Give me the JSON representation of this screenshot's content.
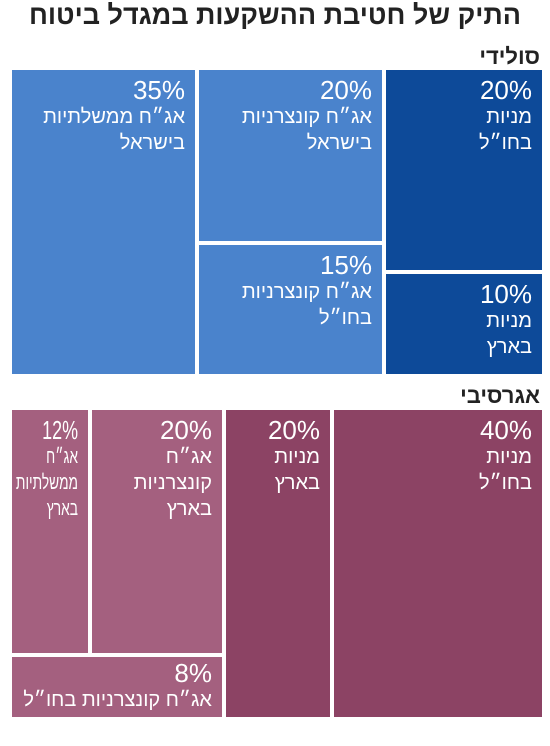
{
  "title": "התיק של חטיבת ההשקעות במגדל ביטוח",
  "sections": {
    "solid": {
      "label": "סולידי"
    },
    "aggressive": {
      "label": "אגרסיבי"
    }
  },
  "colors": {
    "solid_light": "#4a83cc",
    "solid_dark": "#0d4a99",
    "aggressive_light": "#a4607f",
    "aggressive_dark": "#8c4364"
  },
  "chart_data": [
    {
      "type": "treemap",
      "title": "סולידי",
      "items": [
        {
          "label": "אג״ח ממשלתיות\nבישראל",
          "value": 35,
          "display": "35%",
          "color": "#4a83cc"
        },
        {
          "label": "אג״ח קונצרניות\nבישראל",
          "value": 20,
          "display": "20%",
          "color": "#4a83cc"
        },
        {
          "label": "מניות\nבחו״ל",
          "value": 20,
          "display": "20%",
          "color": "#0d4a99"
        },
        {
          "label": "אג״ח קונצרניות\nבחו״ל",
          "value": 15,
          "display": "15%",
          "color": "#4a83cc"
        },
        {
          "label": "מניות\nבארץ",
          "value": 10,
          "display": "10%",
          "color": "#0d4a99"
        }
      ]
    },
    {
      "type": "treemap",
      "title": "אגרסיבי",
      "items": [
        {
          "label": "אג״ח\nממשלתיות\nבארץ",
          "value": 12,
          "display": "12%",
          "color": "#a4607f"
        },
        {
          "label": "אג״ח\nקונצרניות\nבארץ",
          "value": 20,
          "display": "20%",
          "color": "#a4607f"
        },
        {
          "label": "מניות\nבארץ",
          "value": 20,
          "display": "20%",
          "color": "#8c4364"
        },
        {
          "label": "מניות\nבחו״ל",
          "value": 40,
          "display": "40%",
          "color": "#8c4364"
        },
        {
          "label": "אג״ח קונצרניות בחו״ל",
          "value": 8,
          "display": "8%",
          "color": "#a4607f"
        }
      ]
    }
  ]
}
